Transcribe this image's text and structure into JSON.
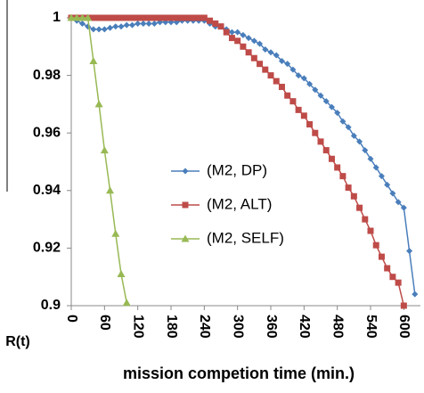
{
  "chart_data": {
    "type": "line",
    "y_label": "R(t)",
    "x_label": "mission competion time (min.)",
    "xlim": [
      0,
      630
    ],
    "ylim": [
      0.9,
      1
    ],
    "xticks": [
      0,
      60,
      120,
      180,
      240,
      300,
      360,
      420,
      480,
      540,
      600
    ],
    "yticks": [
      0.9,
      0.92,
      0.94,
      0.96,
      0.98,
      1
    ],
    "legend": "center",
    "series": [
      {
        "name": "(M2, DP)",
        "color": "#4a7ebb",
        "marker": "diamond",
        "x": [
          0,
          10,
          20,
          30,
          40,
          50,
          60,
          70,
          80,
          90,
          100,
          110,
          120,
          130,
          140,
          150,
          160,
          170,
          180,
          190,
          200,
          210,
          220,
          230,
          240,
          250,
          260,
          270,
          280,
          290,
          300,
          310,
          320,
          330,
          340,
          350,
          360,
          370,
          380,
          390,
          400,
          410,
          420,
          430,
          440,
          450,
          460,
          470,
          480,
          490,
          500,
          510,
          520,
          530,
          540,
          550,
          560,
          570,
          580,
          590,
          600,
          610,
          620
        ],
        "values": [
          1,
          0.999,
          0.998,
          0.997,
          0.996,
          0.996,
          0.996,
          0.9965,
          0.997,
          0.997,
          0.9975,
          0.9975,
          0.998,
          0.998,
          0.998,
          0.998,
          0.9985,
          0.9985,
          0.9985,
          0.9985,
          0.999,
          0.999,
          0.999,
          0.999,
          0.999,
          0.998,
          0.997,
          0.997,
          0.996,
          0.995,
          0.995,
          0.994,
          0.993,
          0.992,
          0.991,
          0.989,
          0.988,
          0.987,
          0.985,
          0.984,
          0.982,
          0.98,
          0.979,
          0.977,
          0.975,
          0.973,
          0.971,
          0.969,
          0.967,
          0.964,
          0.962,
          0.959,
          0.957,
          0.954,
          0.951,
          0.948,
          0.945,
          0.942,
          0.939,
          0.936,
          0.934,
          0.919,
          0.904
        ]
      },
      {
        "name": "(M2, ALT)",
        "color": "#be4b48",
        "marker": "square",
        "x": [
          0,
          10,
          20,
          30,
          40,
          50,
          60,
          70,
          80,
          90,
          100,
          110,
          120,
          130,
          140,
          150,
          160,
          170,
          180,
          190,
          200,
          210,
          220,
          230,
          240,
          250,
          260,
          270,
          280,
          290,
          300,
          310,
          320,
          330,
          340,
          350,
          360,
          370,
          380,
          390,
          400,
          410,
          420,
          430,
          440,
          450,
          460,
          470,
          480,
          490,
          500,
          510,
          520,
          530,
          540,
          550,
          560,
          570,
          580,
          590,
          600
        ],
        "values": [
          1,
          1,
          1,
          1,
          1,
          1,
          1,
          1,
          1,
          1,
          1,
          1,
          1,
          1,
          1,
          1,
          1,
          1,
          1,
          1,
          1,
          1,
          1,
          1,
          1,
          0.999,
          0.998,
          0.997,
          0.995,
          0.993,
          0.992,
          0.99,
          0.988,
          0.986,
          0.984,
          0.982,
          0.98,
          0.978,
          0.976,
          0.973,
          0.971,
          0.968,
          0.966,
          0.963,
          0.96,
          0.957,
          0.954,
          0.951,
          0.948,
          0.945,
          0.941,
          0.938,
          0.934,
          0.93,
          0.926,
          0.921,
          0.917,
          0.913,
          0.91,
          0.908,
          0.9
        ]
      },
      {
        "name": "(M2, SELF)",
        "color": "#98b954",
        "marker": "triangle",
        "x": [
          0,
          10,
          20,
          30,
          40,
          50,
          60,
          70,
          80,
          90,
          100
        ],
        "values": [
          1,
          1,
          1,
          1,
          0.985,
          0.97,
          0.954,
          0.94,
          0.925,
          0.911,
          0.901
        ]
      }
    ]
  }
}
